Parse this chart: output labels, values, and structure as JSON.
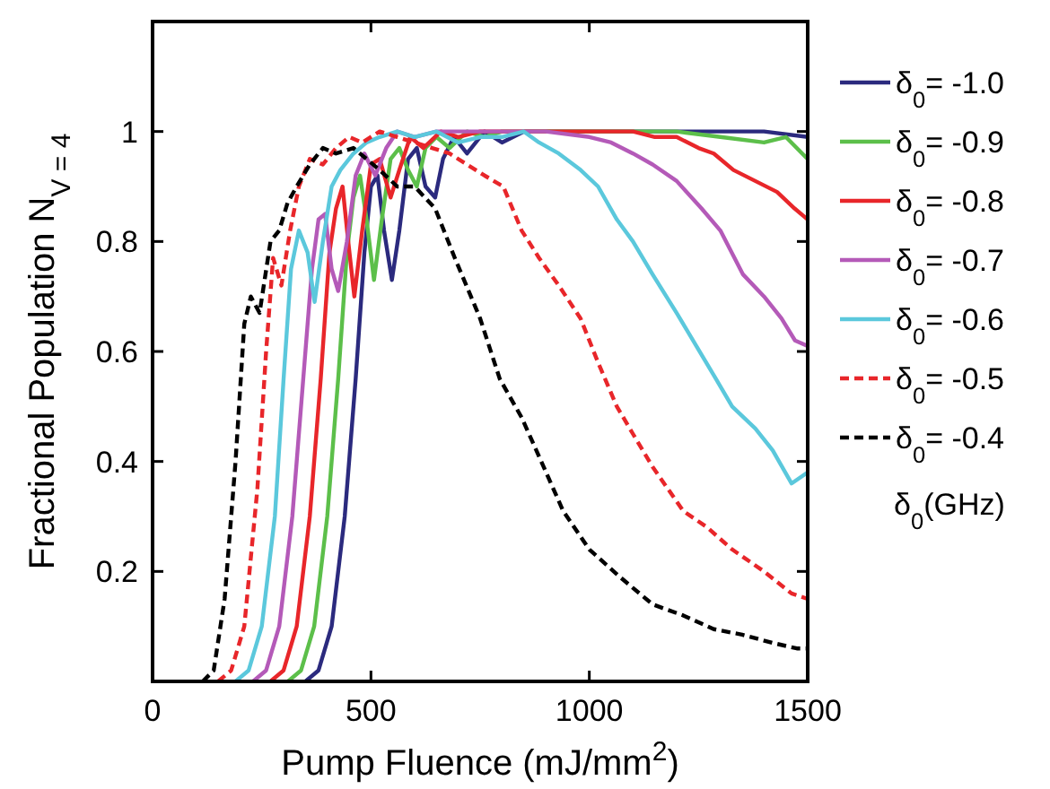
{
  "chart_data": {
    "type": "line",
    "xlabel": "Pump Fluence (mJ/mm$^{2}$)",
    "ylabel": "Fractional Population N$_{V = 4}$",
    "legend_title": "δ$_{0}$(GHz)",
    "legend": "right",
    "grid": false,
    "xlim": [
      0,
      1500
    ],
    "xticks": [
      0,
      500,
      1000,
      1500
    ],
    "ylim": [
      0,
      1.2
    ],
    "yticks": [
      0.2,
      0.4,
      0.6,
      0.8,
      1
    ],
    "series": [
      {
        "name": "δ$_{0}$= -1.0",
        "color": "#2b2a7e",
        "line_style": "solid",
        "x": [
          350,
          380,
          410,
          440,
          465,
          485,
          500,
          515,
          530,
          548,
          565,
          585,
          605,
          625,
          647,
          665,
          690,
          720,
          760,
          800,
          850,
          900,
          1000,
          1200,
          1400,
          1500
        ],
        "values": [
          0,
          0.02,
          0.1,
          0.3,
          0.55,
          0.78,
          0.9,
          0.92,
          0.82,
          0.73,
          0.82,
          0.95,
          0.97,
          0.9,
          0.88,
          0.95,
          0.99,
          0.96,
          1.0,
          0.98,
          1.0,
          1.0,
          1.0,
          1.0,
          1.0,
          0.99
        ]
      },
      {
        "name": "δ$_{0}$= -0.9",
        "color": "#5cbf4a",
        "line_style": "solid",
        "x": [
          310,
          340,
          370,
          400,
          425,
          445,
          460,
          475,
          490,
          507,
          525,
          545,
          565,
          585,
          605,
          625,
          650,
          680,
          720,
          760,
          800,
          900,
          1000,
          1200,
          1300,
          1400,
          1450,
          1500
        ],
        "values": [
          0,
          0.02,
          0.1,
          0.3,
          0.55,
          0.78,
          0.88,
          0.92,
          0.84,
          0.73,
          0.84,
          0.95,
          0.97,
          0.93,
          0.9,
          0.97,
          0.99,
          0.97,
          1.0,
          0.99,
          1.0,
          1.0,
          1.0,
          1.0,
          0.99,
          0.98,
          0.99,
          0.95
        ]
      },
      {
        "name": "δ$_{0}$= -0.8",
        "color": "#e8262a",
        "line_style": "solid",
        "x": [
          270,
          300,
          330,
          360,
          385,
          405,
          420,
          435,
          448,
          462,
          480,
          500,
          520,
          545,
          565,
          590,
          620,
          660,
          700,
          750,
          800,
          900,
          1000,
          1100,
          1150,
          1200,
          1250,
          1285,
          1330,
          1380,
          1430,
          1470,
          1500
        ],
        "values": [
          0,
          0.02,
          0.1,
          0.3,
          0.55,
          0.78,
          0.86,
          0.9,
          0.8,
          0.7,
          0.82,
          0.94,
          0.95,
          0.88,
          0.93,
          0.99,
          0.97,
          1.0,
          0.99,
          1.0,
          1.0,
          1.0,
          1.0,
          1.0,
          0.99,
          0.99,
          0.97,
          0.96,
          0.93,
          0.91,
          0.89,
          0.86,
          0.84
        ]
      },
      {
        "name": "δ$_{0}$= -0.7",
        "color": "#b45ab8",
        "line_style": "solid",
        "x": [
          230,
          260,
          290,
          320,
          345,
          365,
          380,
          395,
          410,
          425,
          445,
          465,
          485,
          510,
          535,
          560,
          600,
          650,
          700,
          800,
          900,
          1000,
          1050,
          1100,
          1145,
          1200,
          1257,
          1300,
          1352,
          1400,
          1440,
          1471,
          1500
        ],
        "values": [
          0,
          0.02,
          0.1,
          0.3,
          0.55,
          0.75,
          0.84,
          0.85,
          0.75,
          0.71,
          0.8,
          0.92,
          0.96,
          0.92,
          0.97,
          1.0,
          0.99,
          1.0,
          1.0,
          1.0,
          1.0,
          0.99,
          0.98,
          0.96,
          0.94,
          0.91,
          0.86,
          0.82,
          0.74,
          0.7,
          0.66,
          0.62,
          0.61
        ]
      },
      {
        "name": "δ$_{0}$= -0.6",
        "color": "#5bc8dc",
        "line_style": "solid",
        "x": [
          190,
          220,
          250,
          280,
          300,
          317,
          335,
          355,
          371,
          390,
          410,
          430,
          460,
          490,
          520,
          560,
          600,
          650,
          700,
          750,
          800,
          850,
          885,
          930,
          980,
          1020,
          1063,
          1100,
          1145,
          1200,
          1245,
          1290,
          1327,
          1380,
          1420,
          1463,
          1500
        ],
        "values": [
          0,
          0.02,
          0.1,
          0.3,
          0.55,
          0.75,
          0.82,
          0.78,
          0.69,
          0.8,
          0.9,
          0.93,
          0.96,
          0.98,
          0.99,
          1.0,
          0.99,
          1.0,
          0.98,
          0.99,
          0.99,
          1.0,
          0.98,
          0.96,
          0.93,
          0.9,
          0.84,
          0.8,
          0.74,
          0.67,
          0.61,
          0.55,
          0.5,
          0.46,
          0.42,
          0.36,
          0.38
        ]
      },
      {
        "name": "δ$_{0}$= -0.5",
        "color": "#e8262a",
        "line_style": "dashed",
        "x": [
          150,
          180,
          210,
          240,
          260,
          276,
          295,
          315,
          335,
          360,
          390,
          420,
          450,
          480,
          520,
          560,
          600,
          640,
          680,
          720,
          760,
          803,
          845,
          885,
          930,
          980,
          1020,
          1063,
          1100,
          1145,
          1180,
          1215,
          1270,
          1327,
          1400,
          1463,
          1500
        ],
        "values": [
          0,
          0.02,
          0.1,
          0.35,
          0.6,
          0.77,
          0.72,
          0.82,
          0.9,
          0.95,
          0.94,
          0.97,
          0.99,
          0.98,
          1.0,
          0.99,
          0.98,
          0.97,
          0.96,
          0.94,
          0.92,
          0.9,
          0.82,
          0.77,
          0.72,
          0.66,
          0.58,
          0.5,
          0.45,
          0.39,
          0.35,
          0.31,
          0.28,
          0.24,
          0.2,
          0.16,
          0.15
        ]
      },
      {
        "name": "δ$_{0}$= -0.4",
        "color": "#000000",
        "line_style": "dashed",
        "x": [
          115,
          140,
          165,
          190,
          210,
          225,
          245,
          270,
          290,
          309,
          330,
          360,
          390,
          420,
          460,
          490,
          520,
          560,
          600,
          647,
          692,
          750,
          795,
          845,
          890,
          940,
          1000,
          1070,
          1145,
          1215,
          1285,
          1350,
          1420,
          1475,
          1500
        ],
        "values": [
          0,
          0.02,
          0.15,
          0.4,
          0.65,
          0.7,
          0.67,
          0.8,
          0.82,
          0.87,
          0.9,
          0.94,
          0.97,
          0.96,
          0.97,
          0.95,
          0.93,
          0.9,
          0.9,
          0.86,
          0.77,
          0.66,
          0.55,
          0.48,
          0.4,
          0.31,
          0.24,
          0.19,
          0.14,
          0.12,
          0.095,
          0.085,
          0.07,
          0.06,
          0.06
        ]
      }
    ]
  }
}
